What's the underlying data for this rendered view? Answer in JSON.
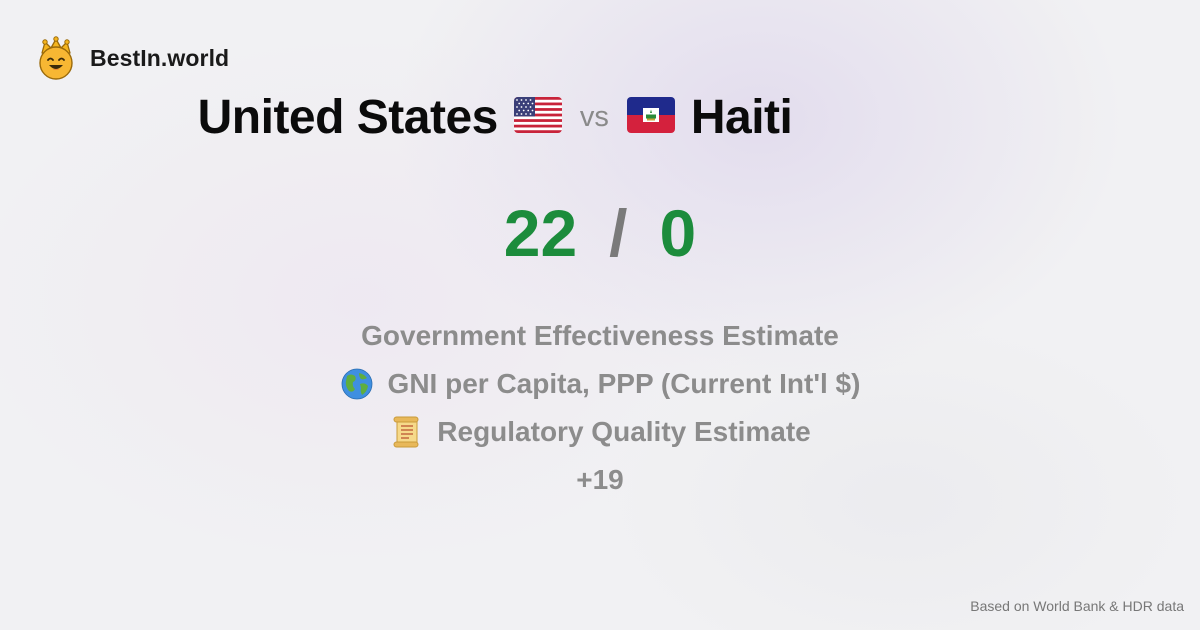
{
  "brand": {
    "name": "BestIn.world",
    "logo_icon": "crowned-smiley-icon"
  },
  "matchup": {
    "country_a": {
      "name": "United States",
      "flag_icon": "us-flag-icon"
    },
    "vs_label": "vs",
    "country_b": {
      "name": "Haiti",
      "flag_icon": "haiti-flag-icon"
    }
  },
  "score": {
    "a": "22",
    "separator": "/",
    "b": "0"
  },
  "metrics": [
    {
      "label": "Government Effectiveness Estimate",
      "icon": ""
    },
    {
      "label": "GNI per Capita, PPP (Current Int'l $)",
      "icon": "globe-icon"
    },
    {
      "label": "Regulatory Quality Estimate",
      "icon": "scroll-icon"
    }
  ],
  "more_label": "+19",
  "footer": "Based on World Bank & HDR data",
  "colors": {
    "score": "#1c8c3c",
    "muted_text": "#8c8c8c",
    "background": "#f1f1f3"
  }
}
